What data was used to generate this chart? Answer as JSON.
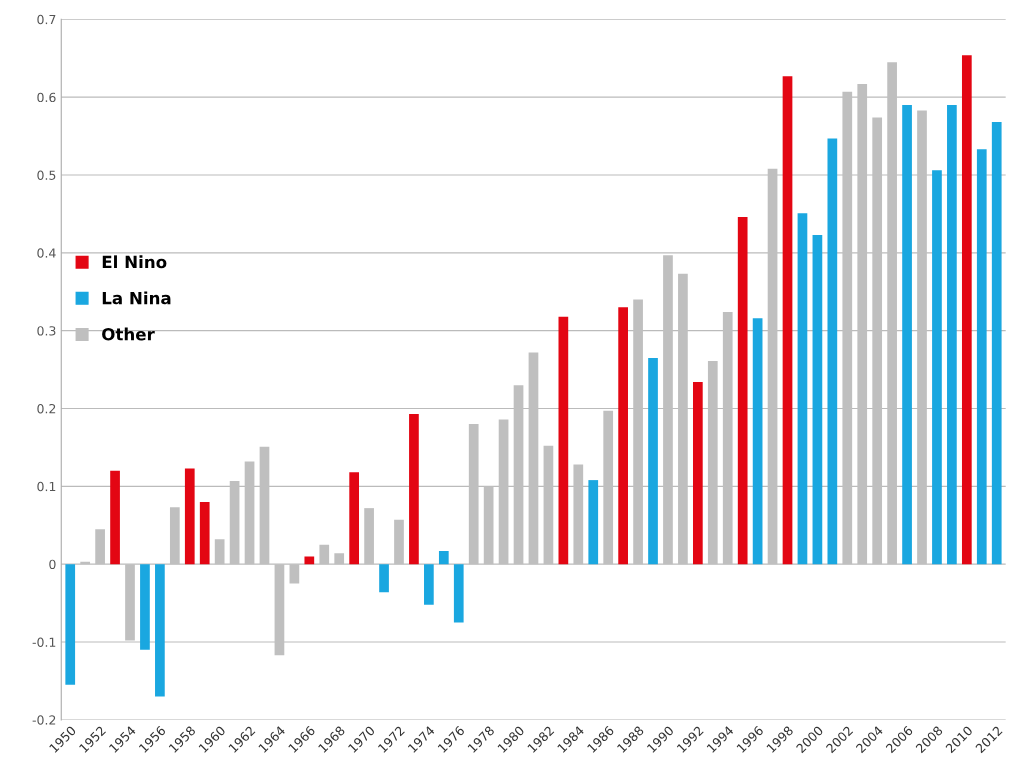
{
  "chart_data": {
    "type": "bar",
    "categories": [
      "1950",
      null,
      "1952",
      null,
      "1954",
      null,
      "1956",
      null,
      "1958",
      null,
      "1960",
      null,
      "1962",
      null,
      "1964",
      null,
      "1966",
      null,
      "1968",
      null,
      "1970",
      null,
      "1972",
      null,
      "1974",
      null,
      "1976",
      null,
      "1978",
      null,
      "1980",
      null,
      "1982",
      null,
      "1984",
      null,
      "1986",
      null,
      "1988",
      null,
      "1990",
      null,
      "1992",
      null,
      "1994",
      null,
      "1996",
      null,
      "1998",
      null,
      "2000",
      null,
      "2002",
      null,
      "2004",
      null,
      "2006",
      null,
      "2008",
      null,
      "2010",
      null,
      "2012"
    ],
    "series": [
      {
        "name": "El Nino",
        "color": "#e30613",
        "values": [
          null,
          null,
          null,
          0.12,
          null,
          null,
          null,
          null,
          0.123,
          0.08,
          null,
          null,
          null,
          null,
          null,
          null,
          0.01,
          null,
          null,
          0.118,
          null,
          null,
          null,
          0.193,
          null,
          null,
          null,
          null,
          null,
          null,
          null,
          null,
          null,
          0.318,
          null,
          null,
          null,
          0.33,
          null,
          null,
          null,
          null,
          0.234,
          null,
          null,
          0.446,
          null,
          null,
          0.627,
          null,
          null,
          null,
          null,
          null,
          null,
          null,
          null,
          null,
          null,
          null,
          0.654,
          null,
          null
        ]
      },
      {
        "name": "La Nina",
        "color": "#1aa7e0",
        "values": [
          -0.155,
          null,
          null,
          null,
          null,
          -0.11,
          -0.17,
          null,
          null,
          null,
          null,
          null,
          null,
          null,
          null,
          null,
          null,
          null,
          null,
          null,
          null,
          -0.036,
          null,
          null,
          -0.052,
          0.017,
          -0.075,
          null,
          null,
          null,
          null,
          null,
          null,
          null,
          null,
          0.108,
          null,
          null,
          null,
          0.265,
          null,
          null,
          null,
          null,
          null,
          null,
          0.316,
          null,
          null,
          0.451,
          0.423,
          0.547,
          null,
          null,
          null,
          null,
          0.59,
          null,
          0.506,
          0.59,
          null,
          0.533,
          0.568
        ]
      },
      {
        "name": "Other",
        "color": "#bfbfbf",
        "values": [
          null,
          0.003,
          0.045,
          null,
          -0.098,
          null,
          null,
          0.073,
          null,
          null,
          0.032,
          0.107,
          0.132,
          0.151,
          -0.117,
          -0.025,
          null,
          0.025,
          0.014,
          null,
          0.072,
          null,
          0.057,
          null,
          null,
          null,
          null,
          0.18,
          0.1,
          0.186,
          0.23,
          0.272,
          0.152,
          null,
          0.128,
          null,
          0.197,
          null,
          0.34,
          null,
          0.397,
          0.373,
          null,
          0.261,
          0.324,
          null,
          null,
          0.508,
          null,
          null,
          null,
          null,
          0.607,
          0.617,
          0.574,
          0.645,
          null,
          0.583,
          null,
          null,
          null,
          null,
          null
        ]
      }
    ],
    "ylim": [
      -0.2,
      0.7
    ],
    "yticks": [
      {
        "value": -0.2,
        "label": "-0.2"
      },
      {
        "value": -0.1,
        "label": "-0.1"
      },
      0,
      0.1,
      0.2,
      0.3,
      0.4,
      0.5,
      0.6,
      0.7
    ],
    "grid": "y",
    "legend": "left"
  }
}
